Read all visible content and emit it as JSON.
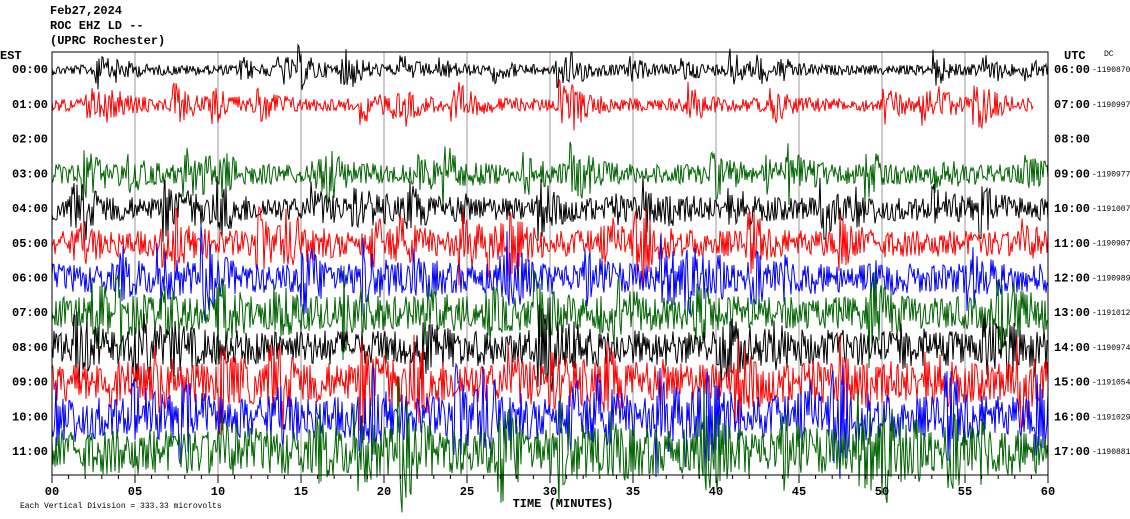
{
  "chart_data": {
    "type": "helicorder",
    "title": "Feb27,2024",
    "subtitle": "ROC EHZ LD --",
    "station": "(UPRC Rochester)",
    "left_axis_label": "EST",
    "right_axis_label": "UTC",
    "dc_label": "DC",
    "xlabel": "TIME (MINUTES)",
    "scale_note": "Each Vertical Division =  333.33 microvolts",
    "xlim": [
      0,
      60
    ],
    "xticks": [
      {
        "value": 0,
        "label": "00"
      },
      {
        "value": 5,
        "label": "05"
      },
      10,
      15,
      20,
      25,
      30,
      35,
      40,
      45,
      50,
      55,
      60
    ],
    "grid": true,
    "rows": [
      {
        "est": "00:00",
        "utc": "06:00",
        "dc": -1190870,
        "color": "#000000"
      },
      {
        "est": "01:00",
        "utc": "07:00",
        "dc": -1190997,
        "color": "#ff0000"
      },
      {
        "est": "02:00",
        "utc": "08:00",
        "dc": null,
        "color": null
      },
      {
        "est": "03:00",
        "utc": "09:00",
        "dc": -1190977,
        "color": "#006400"
      },
      {
        "est": "04:00",
        "utc": "10:00",
        "dc": -1191007,
        "color": "#000000"
      },
      {
        "est": "05:00",
        "utc": "11:00",
        "dc": -1190907,
        "color": "#ff0000"
      },
      {
        "est": "06:00",
        "utc": "12:00",
        "dc": -1190989,
        "color": "#0000ff"
      },
      {
        "est": "07:00",
        "utc": "13:00",
        "dc": -1191012,
        "color": "#006400"
      },
      {
        "est": "08:00",
        "utc": "14:00",
        "dc": -1190974,
        "color": "#000000"
      },
      {
        "est": "09:00",
        "utc": "15:00",
        "dc": -1191054,
        "color": "#ff0000"
      },
      {
        "est": "10:00",
        "utc": "16:00",
        "dc": -1191029,
        "color": "#0000ff"
      },
      {
        "est": "11:00",
        "utc": "17:00",
        "dc": -1190881,
        "color": "#006400"
      }
    ]
  }
}
